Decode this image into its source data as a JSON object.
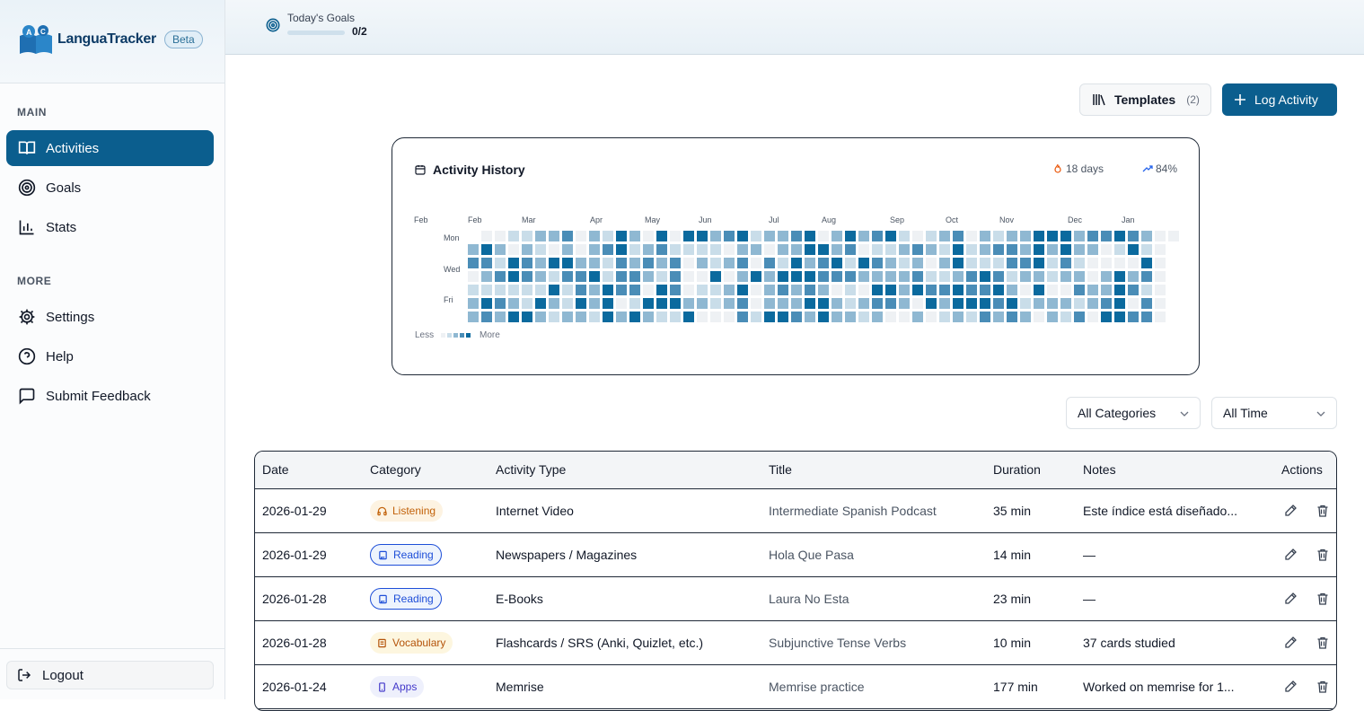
{
  "app": {
    "name": "LanguaTracker",
    "badge": "Beta"
  },
  "sidebar": {
    "main_label": "MAIN",
    "more_label": "MORE",
    "items": [
      {
        "label": "Activities",
        "icon": "book-open-icon",
        "active": true
      },
      {
        "label": "Goals",
        "icon": "target-icon",
        "active": false
      },
      {
        "label": "Stats",
        "icon": "bar-chart-icon",
        "active": false
      },
      {
        "label": "Settings",
        "icon": "gear-icon",
        "active": false
      },
      {
        "label": "Help",
        "icon": "help-circle-icon",
        "active": false
      },
      {
        "label": "Submit Feedback",
        "icon": "message-square-icon",
        "active": false
      }
    ],
    "logout_label": "Logout"
  },
  "topbar": {
    "goals_label": "Today's Goals",
    "goals_count": "0/2",
    "goals_progress": 0
  },
  "toolbar": {
    "templates_label": "Templates",
    "templates_count": "(2)",
    "log_label": "Log Activity"
  },
  "heatmap": {
    "title": "Activity History",
    "streak": "18 days",
    "percent": "84%",
    "months": [
      "Feb",
      "Feb",
      "Mar",
      "Apr",
      "May",
      "Jun",
      "Jul",
      "Aug",
      "Sep",
      "Oct",
      "Nov",
      "Dec",
      "Jan"
    ],
    "days": [
      "Mon",
      "Wed",
      "Fri"
    ],
    "legend_less": "Less",
    "legend_more": "More",
    "colors": [
      "#eef1f4",
      "#c9dde9",
      "#8fb8d2",
      "#4a8db7",
      "#0b6a9e"
    ]
  },
  "filters": {
    "category": "All Categories",
    "time": "All Time"
  },
  "table": {
    "headers": [
      "Date",
      "Category",
      "Activity Type",
      "Title",
      "Duration",
      "Notes",
      "Actions"
    ],
    "rows": [
      {
        "date": "2026-01-29",
        "category": "Listening",
        "cat_class": "b-listening",
        "cat_icon": "headphones-icon",
        "type": "Internet Video",
        "title": "Intermediate Spanish Podcast",
        "duration": "35 min",
        "notes": "Este índice está diseñado..."
      },
      {
        "date": "2026-01-29",
        "category": "Reading",
        "cat_class": "b-reading",
        "cat_icon": "book-icon",
        "type": "Newspapers / Magazines",
        "title": "Hola Que Pasa",
        "duration": "14 min",
        "notes": "—"
      },
      {
        "date": "2026-01-28",
        "category": "Reading",
        "cat_class": "b-reading",
        "cat_icon": "book-icon",
        "type": "E-Books",
        "title": "Laura No Esta",
        "duration": "23 min",
        "notes": "—"
      },
      {
        "date": "2026-01-28",
        "category": "Vocabulary",
        "cat_class": "b-vocab",
        "cat_icon": "flashcard-icon",
        "type": "Flashcards / SRS (Anki, Quizlet, etc.)",
        "title": "Subjunctive Tense Verbs",
        "duration": "10 min",
        "notes": "37 cards studied"
      },
      {
        "date": "2026-01-24",
        "category": "Apps",
        "cat_class": "b-apps",
        "cat_icon": "phone-icon",
        "type": "Memrise",
        "title": "Memrise practice",
        "duration": "177 min",
        "notes": "Worked on memrise for 1..."
      }
    ]
  }
}
